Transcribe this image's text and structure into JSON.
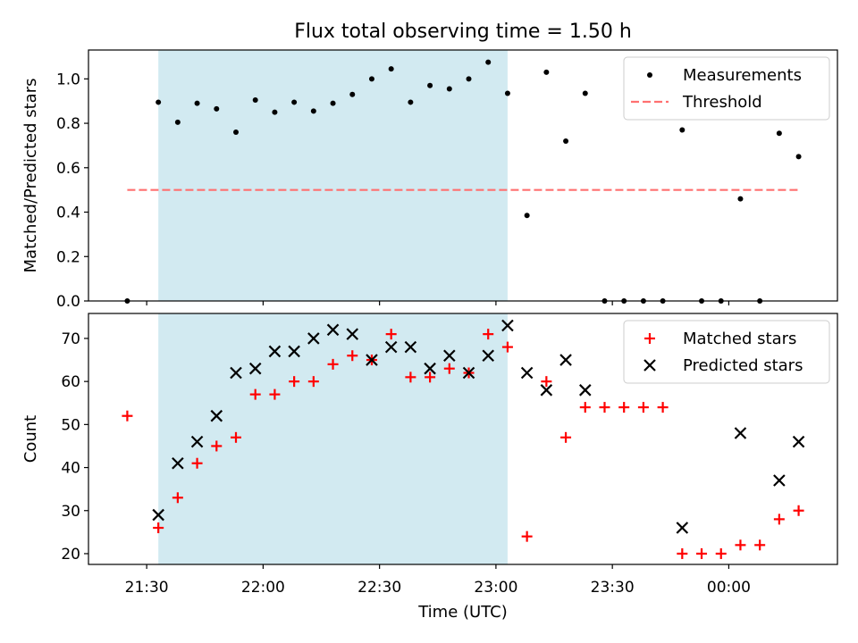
{
  "chart_data": [
    {
      "type": "scatter",
      "title": "Flux total observing time = 1.50 h",
      "ylabel": "Matched/Predicted stars",
      "xlabel": "",
      "ylim": [
        0,
        1.13
      ],
      "yticks": [
        "0.0",
        "0.2",
        "0.4",
        "0.6",
        "0.8",
        "1.0"
      ],
      "grid": false,
      "legend": "top-right",
      "shaded_span": {
        "from": "21:33",
        "to": "23:03",
        "color": "#add8e6"
      },
      "series": [
        {
          "name": "Measurements",
          "kind": "dots",
          "color": "#000000",
          "points": [
            [
              "21:25",
              0.0
            ],
            [
              "21:33",
              0.895
            ],
            [
              "21:38",
              0.805
            ],
            [
              "21:43",
              0.89
            ],
            [
              "21:48",
              0.865
            ],
            [
              "21:53",
              0.76
            ],
            [
              "21:58",
              0.905
            ],
            [
              "22:03",
              0.85
            ],
            [
              "22:08",
              0.895
            ],
            [
              "22:13",
              0.855
            ],
            [
              "22:18",
              0.89
            ],
            [
              "22:23",
              0.93
            ],
            [
              "22:28",
              1.0
            ],
            [
              "22:33",
              1.045
            ],
            [
              "22:38",
              0.895
            ],
            [
              "22:43",
              0.97
            ],
            [
              "22:48",
              0.955
            ],
            [
              "22:53",
              1.0
            ],
            [
              "22:58",
              1.075
            ],
            [
              "23:03",
              0.935
            ],
            [
              "23:08",
              0.385
            ],
            [
              "23:13",
              1.03
            ],
            [
              "23:18",
              0.72
            ],
            [
              "23:23",
              0.935
            ],
            [
              "23:28",
              0.0
            ],
            [
              "23:33",
              0.0
            ],
            [
              "23:38",
              0.0
            ],
            [
              "23:43",
              0.0
            ],
            [
              "23:48",
              0.77
            ],
            [
              "23:53",
              0.0
            ],
            [
              "23:58",
              0.0
            ],
            [
              "00:03",
              0.46
            ],
            [
              "00:08",
              0.0
            ],
            [
              "00:13",
              0.755
            ],
            [
              "00:18",
              0.65
            ]
          ]
        },
        {
          "name": "Threshold",
          "kind": "dashed-line",
          "color": "#ff7070",
          "points": [
            [
              "21:25",
              0.5
            ],
            [
              "00:18",
              0.5
            ]
          ]
        }
      ]
    },
    {
      "type": "scatter",
      "title": "",
      "ylabel": "Count",
      "xlabel": "Time (UTC)",
      "ylim": [
        17.5,
        75.8
      ],
      "yticks": [
        "20",
        "30",
        "40",
        "50",
        "60",
        "70"
      ],
      "xticks": [
        "21:30",
        "22:00",
        "22:30",
        "23:00",
        "23:30",
        "00:00"
      ],
      "grid": false,
      "legend": "top-right",
      "shaded_span": {
        "from": "21:33",
        "to": "23:03",
        "color": "#add8e6"
      },
      "series": [
        {
          "name": "Matched stars",
          "kind": "plus",
          "color": "#ff0000",
          "points": [
            [
              "21:25",
              52
            ],
            [
              "21:33",
              26
            ],
            [
              "21:38",
              33
            ],
            [
              "21:43",
              41
            ],
            [
              "21:48",
              45
            ],
            [
              "21:53",
              47
            ],
            [
              "21:58",
              57
            ],
            [
              "22:03",
              57
            ],
            [
              "22:08",
              60
            ],
            [
              "22:13",
              60
            ],
            [
              "22:18",
              64
            ],
            [
              "22:23",
              66
            ],
            [
              "22:28",
              65
            ],
            [
              "22:33",
              71
            ],
            [
              "22:38",
              61
            ],
            [
              "22:43",
              61
            ],
            [
              "22:48",
              63
            ],
            [
              "22:53",
              62
            ],
            [
              "22:58",
              71
            ],
            [
              "23:03",
              68
            ],
            [
              "23:08",
              24
            ],
            [
              "23:13",
              60
            ],
            [
              "23:18",
              47
            ],
            [
              "23:23",
              54
            ],
            [
              "23:28",
              54
            ],
            [
              "23:33",
              54
            ],
            [
              "23:38",
              54
            ],
            [
              "23:43",
              54
            ],
            [
              "23:48",
              20
            ],
            [
              "23:53",
              20
            ],
            [
              "23:58",
              20
            ],
            [
              "00:03",
              22
            ],
            [
              "00:08",
              22
            ],
            [
              "00:13",
              28
            ],
            [
              "00:18",
              30
            ]
          ]
        },
        {
          "name": "Predicted stars",
          "kind": "x",
          "color": "#000000",
          "points": [
            [
              "21:33",
              29
            ],
            [
              "21:38",
              41
            ],
            [
              "21:43",
              46
            ],
            [
              "21:48",
              52
            ],
            [
              "21:53",
              62
            ],
            [
              "21:58",
              63
            ],
            [
              "22:03",
              67
            ],
            [
              "22:08",
              67
            ],
            [
              "22:13",
              70
            ],
            [
              "22:18",
              72
            ],
            [
              "22:23",
              71
            ],
            [
              "22:28",
              65
            ],
            [
              "22:33",
              68
            ],
            [
              "22:38",
              68
            ],
            [
              "22:43",
              63
            ],
            [
              "22:48",
              66
            ],
            [
              "22:53",
              62
            ],
            [
              "22:58",
              66
            ],
            [
              "23:03",
              73
            ],
            [
              "23:08",
              62
            ],
            [
              "23:13",
              58
            ],
            [
              "23:18",
              65
            ],
            [
              "23:23",
              58
            ],
            [
              "23:48",
              26
            ],
            [
              "00:03",
              48
            ],
            [
              "00:13",
              37
            ],
            [
              "00:18",
              46
            ]
          ]
        }
      ]
    }
  ]
}
